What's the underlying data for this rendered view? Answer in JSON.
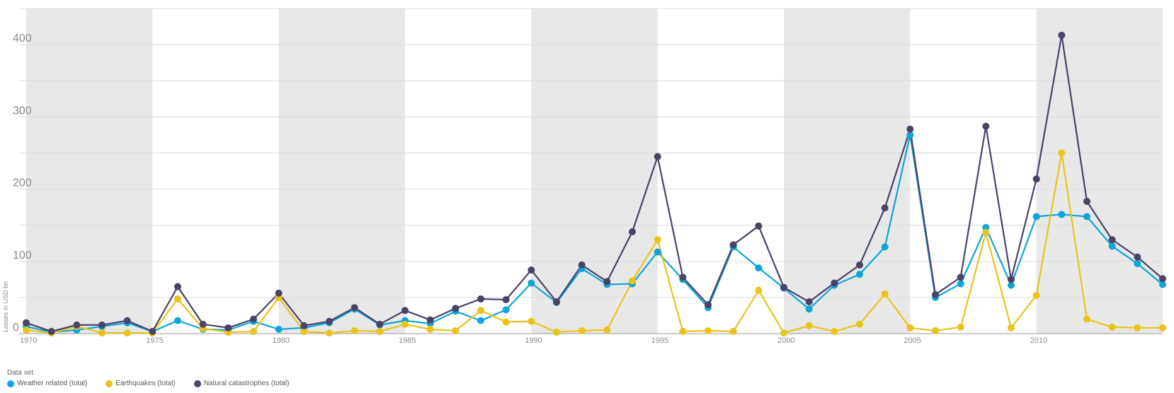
{
  "chart_data": {
    "type": "line",
    "ylabel": "Losses in USD bn",
    "xlim": [
      1970,
      2015
    ],
    "ylim": [
      0,
      450
    ],
    "x_ticks": [
      "1970",
      "1975",
      "1980",
      "1985",
      "1990",
      "1995",
      "2000",
      "2005",
      "2010"
    ],
    "y_ticks": [
      "0",
      "100",
      "200",
      "300",
      "400"
    ],
    "grid": true,
    "legend_position": "bottom-left",
    "x": [
      1970,
      1971,
      1972,
      1973,
      1974,
      1975,
      1976,
      1977,
      1978,
      1979,
      1980,
      1981,
      1982,
      1983,
      1984,
      1985,
      1986,
      1987,
      1988,
      1989,
      1990,
      1991,
      1992,
      1993,
      1994,
      1995,
      1996,
      1997,
      1998,
      1999,
      2000,
      2001,
      2002,
      2003,
      2004,
      2005,
      2006,
      2007,
      2008,
      2009,
      2010,
      2011,
      2012,
      2013,
      2014,
      2015
    ],
    "series": [
      {
        "name": "Weather related (total)",
        "color": "#0ea5d8",
        "values": [
          10,
          2,
          5,
          10,
          15,
          3,
          18,
          6,
          5,
          17,
          6,
          8,
          15,
          34,
          12,
          18,
          14,
          31,
          18,
          33,
          70,
          43,
          90,
          68,
          69,
          113,
          75,
          36,
          120,
          91,
          63,
          34,
          67,
          82,
          120,
          275,
          50,
          69,
          147,
          67,
          162,
          165,
          162,
          121,
          97,
          68
        ]
      },
      {
        "name": "Earthquakes (total)",
        "color": "#e8c41a",
        "values": [
          5,
          1,
          10,
          1,
          1,
          1,
          48,
          7,
          2,
          3,
          50,
          3,
          1,
          4,
          3,
          13,
          6,
          4,
          32,
          16,
          17,
          2,
          4,
          5,
          73,
          130,
          3,
          4,
          3,
          60,
          1,
          11,
          3,
          13,
          55,
          8,
          4,
          9,
          140,
          8,
          53,
          250,
          20,
          9,
          8,
          8
        ]
      },
      {
        "name": "Natural catastrophes (total)",
        "color": "#4b4268",
        "values": [
          15,
          3,
          12,
          12,
          18,
          3,
          65,
          13,
          8,
          20,
          56,
          11,
          17,
          36,
          13,
          32,
          19,
          35,
          48,
          47,
          88,
          44,
          95,
          72,
          141,
          245,
          78,
          40,
          123,
          149,
          64,
          44,
          70,
          95,
          174,
          283,
          54,
          78,
          287,
          75,
          214,
          413,
          183,
          130,
          106,
          76
        ]
      }
    ]
  },
  "legend": {
    "title": "Data set"
  }
}
